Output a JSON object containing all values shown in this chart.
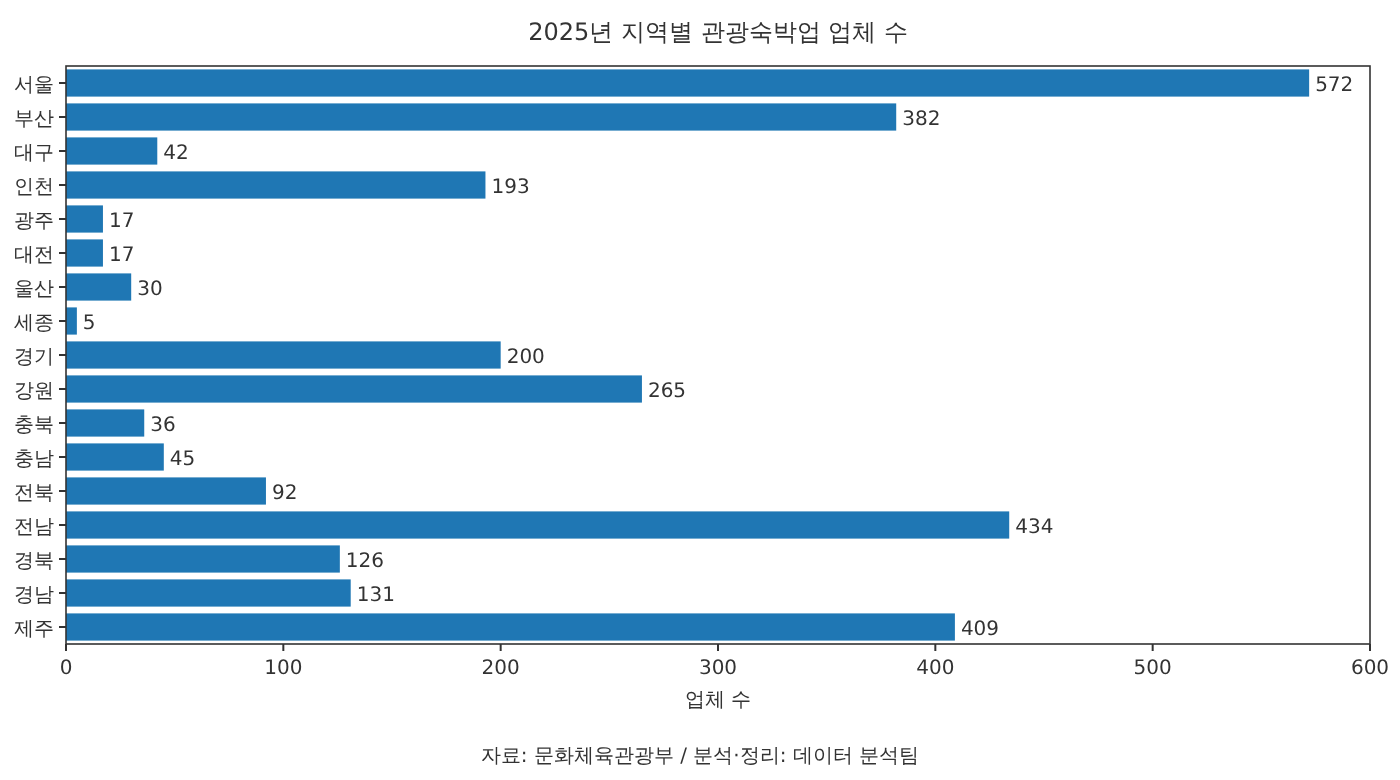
{
  "chart_data": {
    "type": "bar",
    "orientation": "horizontal",
    "title": "2025년 지역별 관광숙박업 업체 수",
    "xlabel": "업체 수",
    "categories": [
      "서울",
      "부산",
      "대구",
      "인천",
      "광주",
      "대전",
      "울산",
      "세종",
      "경기",
      "강원",
      "충북",
      "충남",
      "전북",
      "전남",
      "경북",
      "경남",
      "제주"
    ],
    "values": [
      572,
      382,
      42,
      193,
      17,
      17,
      30,
      5,
      200,
      265,
      36,
      45,
      92,
      434,
      126,
      131,
      409
    ],
    "color": "#1f77b4",
    "xlim": [
      0,
      600
    ],
    "xticks": [
      0,
      100,
      200,
      300,
      400,
      500,
      600
    ],
    "data_labels": true,
    "annotations": [
      "자료: 문화체육관광부 / 분석·정리: 데이터 분석팀"
    ]
  }
}
